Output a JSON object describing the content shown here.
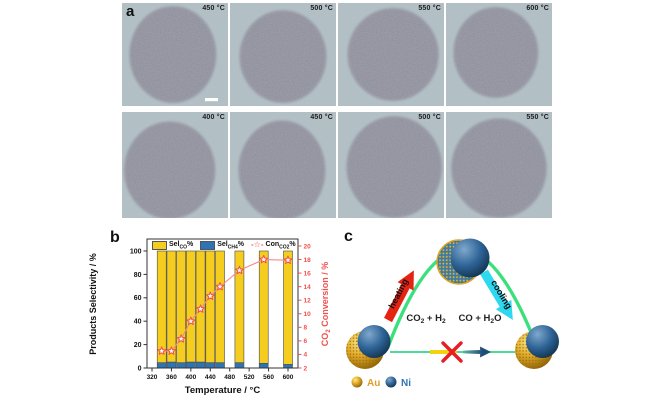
{
  "figure": {
    "panel_a_label": "a",
    "panel_b_label": "b",
    "panel_c_label": "c"
  },
  "panel_a": {
    "description": "TEM images of a nanoparticle at different temperatures",
    "images": [
      {
        "label": "450 °C",
        "scale_bar": true
      },
      {
        "label": "500 °C",
        "scale_bar": false
      },
      {
        "label": "550 °C",
        "scale_bar": false
      },
      {
        "label": "600 °C",
        "scale_bar": false
      },
      {
        "label": "400 °C",
        "scale_bar": false
      },
      {
        "label": "450 °C",
        "scale_bar": false
      },
      {
        "label": "500 °C",
        "scale_bar": false
      },
      {
        "label": "550 °C",
        "scale_bar": false
      }
    ]
  },
  "chart_data": {
    "type": "bar",
    "title": "",
    "categories": [
      340,
      360,
      380,
      400,
      420,
      440,
      460,
      500,
      550,
      600
    ],
    "series": [
      {
        "name": "Sel-CO%",
        "type": "bar",
        "color": "#F5CD1E",
        "values": [
          95.5,
          95,
          95.5,
          95,
          95,
          95.5,
          95.5,
          95.5,
          96,
          97
        ]
      },
      {
        "name": "Sel-CH4%",
        "type": "bar",
        "color": "#2E74B5",
        "values": [
          4.5,
          5,
          4.5,
          5,
          5,
          4.5,
          4.5,
          4.5,
          4,
          3
        ]
      },
      {
        "name": "Con-CO2%",
        "type": "line",
        "color": "#F0504E",
        "values": [
          4.5,
          4.5,
          6.3,
          8.9,
          10.7,
          12.6,
          14.0,
          16.4,
          18.0,
          17.9
        ]
      }
    ],
    "legend": [
      {
        "swatch": "bar",
        "color": "#F5CD1E",
        "segments": [
          {
            "t": "Sel"
          },
          {
            "s": "CO"
          },
          {
            "t": "%"
          }
        ]
      },
      {
        "swatch": "bar",
        "color": "#2E74B5",
        "segments": [
          {
            "t": "Sel"
          },
          {
            "s": "CH4"
          },
          {
            "t": "%"
          }
        ]
      },
      {
        "swatch": "star",
        "color": "#F0504E",
        "symbol": "-☆-",
        "segments": [
          {
            "t": "Con"
          },
          {
            "s": "CO2"
          },
          {
            "t": "%"
          }
        ]
      }
    ],
    "xlabel": "Temperature / °C",
    "ylabel_left": "Products Selectivity / %",
    "ylabel_right_segments": [
      {
        "t": "CO"
      },
      {
        "s": "2"
      },
      {
        "t": " Conversion / %"
      }
    ],
    "x_ticks": [
      320,
      360,
      400,
      440,
      480,
      520,
      560,
      600
    ],
    "y_left_ticks": [
      0,
      20,
      40,
      60,
      80,
      100
    ],
    "y_right_ticks": [
      2,
      4,
      6,
      8,
      10,
      12,
      14,
      16,
      18,
      20
    ],
    "y_left_range": [
      0,
      110
    ],
    "y_right_range": [
      2,
      20.6
    ],
    "grid": false,
    "legend_position": "top-inside",
    "stacked": true
  },
  "panel_c": {
    "heating_label": "heating",
    "cooling_label": "cooling",
    "reaction_forward_segments": [
      {
        "t": "CO"
      },
      {
        "s": "2"
      },
      {
        "t": " + H"
      },
      {
        "s": "2"
      }
    ],
    "reaction_reverse_segments": [
      {
        "t": "CO + H"
      },
      {
        "s": "2"
      },
      {
        "t": "O"
      }
    ],
    "legend": [
      {
        "label": "Au",
        "color": "#DF9F27"
      },
      {
        "label": "Ni",
        "color": "#2E74B5"
      }
    ],
    "colors": {
      "path_green": "#3BE07D",
      "heating_arrow": "#E42313",
      "cooling_arrow": "#2ED9F0",
      "blocked_cross": "#EA1C24",
      "gold": "#D8A01D",
      "nickel_blue": "#1F4E79"
    }
  }
}
